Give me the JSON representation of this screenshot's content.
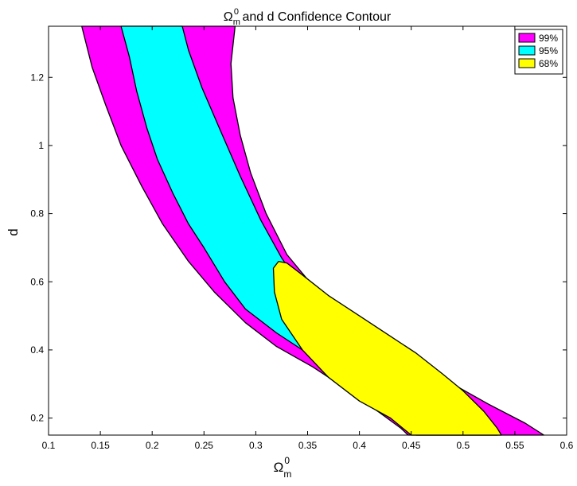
{
  "chart_data": {
    "type": "contour",
    "title": {
      "symbol": "Ω",
      "sub": "m",
      "sup": "0",
      "rest": " and d Confidence Contour"
    },
    "xlabel": {
      "symbol": "Ω",
      "sub": "m",
      "sup": "0"
    },
    "ylabel": "d",
    "xlim": [
      0.1,
      0.6
    ],
    "ylim": [
      0.15,
      1.35
    ],
    "xticks": [
      0.1,
      0.15,
      0.2,
      0.25,
      0.3,
      0.35,
      0.4,
      0.45,
      0.5,
      0.55,
      0.6
    ],
    "xtick_labels": [
      "0.1",
      "0.15",
      "0.2",
      "0.25",
      "0.3",
      "0.35",
      "0.4",
      "0.45",
      "0.5",
      "0.55",
      "0.6"
    ],
    "yticks": [
      0.2,
      0.4,
      0.6,
      0.8,
      1.0,
      1.2
    ],
    "ytick_labels": [
      "0.2",
      "0.4",
      "0.6",
      "0.8",
      "1",
      "1.2"
    ],
    "grid": false,
    "legend_position": "top-right",
    "series": [
      {
        "name": "99%",
        "color": "#ff00ff",
        "polygon": [
          [
            0.132,
            1.35
          ],
          [
            0.142,
            1.23
          ],
          [
            0.155,
            1.12
          ],
          [
            0.17,
            1.0
          ],
          [
            0.19,
            0.88
          ],
          [
            0.21,
            0.77
          ],
          [
            0.235,
            0.66
          ],
          [
            0.26,
            0.57
          ],
          [
            0.29,
            0.48
          ],
          [
            0.32,
            0.41
          ],
          [
            0.355,
            0.35
          ],
          [
            0.39,
            0.28
          ],
          [
            0.42,
            0.215
          ],
          [
            0.44,
            0.17
          ],
          [
            0.447,
            0.15
          ],
          [
            0.578,
            0.15
          ],
          [
            0.56,
            0.185
          ],
          [
            0.525,
            0.24
          ],
          [
            0.49,
            0.3
          ],
          [
            0.455,
            0.36
          ],
          [
            0.42,
            0.42
          ],
          [
            0.39,
            0.48
          ],
          [
            0.36,
            0.57
          ],
          [
            0.33,
            0.68
          ],
          [
            0.31,
            0.8
          ],
          [
            0.295,
            0.92
          ],
          [
            0.285,
            1.03
          ],
          [
            0.278,
            1.14
          ],
          [
            0.276,
            1.24
          ],
          [
            0.28,
            1.35
          ]
        ]
      },
      {
        "name": "95%",
        "color": "#00ffff",
        "polygon": [
          [
            0.17,
            1.35
          ],
          [
            0.178,
            1.26
          ],
          [
            0.185,
            1.16
          ],
          [
            0.195,
            1.05
          ],
          [
            0.205,
            0.96
          ],
          [
            0.22,
            0.86
          ],
          [
            0.235,
            0.77
          ],
          [
            0.25,
            0.7
          ],
          [
            0.27,
            0.6
          ],
          [
            0.29,
            0.52
          ],
          [
            0.32,
            0.45
          ],
          [
            0.35,
            0.39
          ],
          [
            0.38,
            0.33
          ],
          [
            0.41,
            0.26
          ],
          [
            0.43,
            0.21
          ],
          [
            0.445,
            0.175
          ],
          [
            0.455,
            0.15
          ],
          [
            0.533,
            0.15
          ],
          [
            0.52,
            0.18
          ],
          [
            0.49,
            0.23
          ],
          [
            0.455,
            0.29
          ],
          [
            0.42,
            0.36
          ],
          [
            0.39,
            0.43
          ],
          [
            0.365,
            0.5
          ],
          [
            0.345,
            0.58
          ],
          [
            0.325,
            0.67
          ],
          [
            0.305,
            0.78
          ],
          [
            0.285,
            0.91
          ],
          [
            0.265,
            1.05
          ],
          [
            0.248,
            1.17
          ],
          [
            0.235,
            1.28
          ],
          [
            0.229,
            1.35
          ]
        ]
      },
      {
        "name": "68%",
        "color": "#ffff00",
        "polygon": [
          [
            0.322,
            0.66
          ],
          [
            0.33,
            0.655
          ],
          [
            0.345,
            0.62
          ],
          [
            0.37,
            0.56
          ],
          [
            0.4,
            0.5
          ],
          [
            0.43,
            0.44
          ],
          [
            0.455,
            0.39
          ],
          [
            0.48,
            0.33
          ],
          [
            0.5,
            0.28
          ],
          [
            0.52,
            0.22
          ],
          [
            0.533,
            0.17
          ],
          [
            0.537,
            0.15
          ],
          [
            0.45,
            0.15
          ],
          [
            0.43,
            0.2
          ],
          [
            0.4,
            0.25
          ],
          [
            0.37,
            0.32
          ],
          [
            0.345,
            0.4
          ],
          [
            0.325,
            0.49
          ],
          [
            0.318,
            0.57
          ],
          [
            0.317,
            0.64
          ]
        ]
      }
    ]
  }
}
